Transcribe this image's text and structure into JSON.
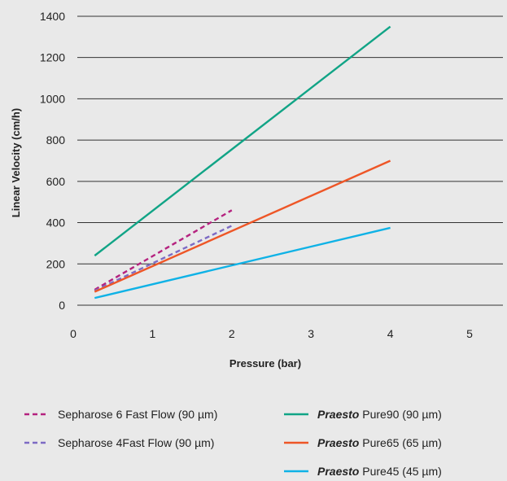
{
  "chart_data": {
    "type": "line",
    "title": "",
    "xlabel": "Pressure (bar)",
    "ylabel": "Linear Velocity (cm/h)",
    "xlim": [
      0,
      5.3
    ],
    "ylim": [
      0,
      1400
    ],
    "x_ticks": [
      "0",
      "1",
      "2",
      "3",
      "4",
      "5"
    ],
    "y_ticks": [
      "0",
      "200",
      "400",
      "600",
      "800",
      "1000",
      "1200",
      "1400"
    ],
    "grid": "horizontal",
    "legend_position": "bottom",
    "series": [
      {
        "name": "Sepharose 6 Fast Flow (90 µm)",
        "color": "#b5227f",
        "dash": "dashed",
        "x": [
          0.27,
          2.0
        ],
        "y": [
          75,
          460
        ]
      },
      {
        "name": "Sepharose 4Fast Flow (90 µm)",
        "color": "#7d6bc4",
        "dash": "dashed",
        "x": [
          0.27,
          2.0
        ],
        "y": [
          70,
          385
        ]
      },
      {
        "name_brand": "Praesto",
        "name": "Pure90 (90 µm)",
        "color": "#11a486",
        "dash": "solid",
        "x": [
          0.27,
          4.0
        ],
        "y": [
          240,
          1350
        ]
      },
      {
        "name_brand": "Praesto",
        "name": "Pure65 (65 µm)",
        "color": "#ee5627",
        "dash": "solid",
        "x": [
          0.27,
          4.0
        ],
        "y": [
          65,
          700
        ]
      },
      {
        "name_brand": "Praesto",
        "name": "Pure45 (45 µm)",
        "color": "#0fb2e6",
        "dash": "solid",
        "x": [
          0.27,
          4.0
        ],
        "y": [
          35,
          375
        ]
      }
    ]
  }
}
